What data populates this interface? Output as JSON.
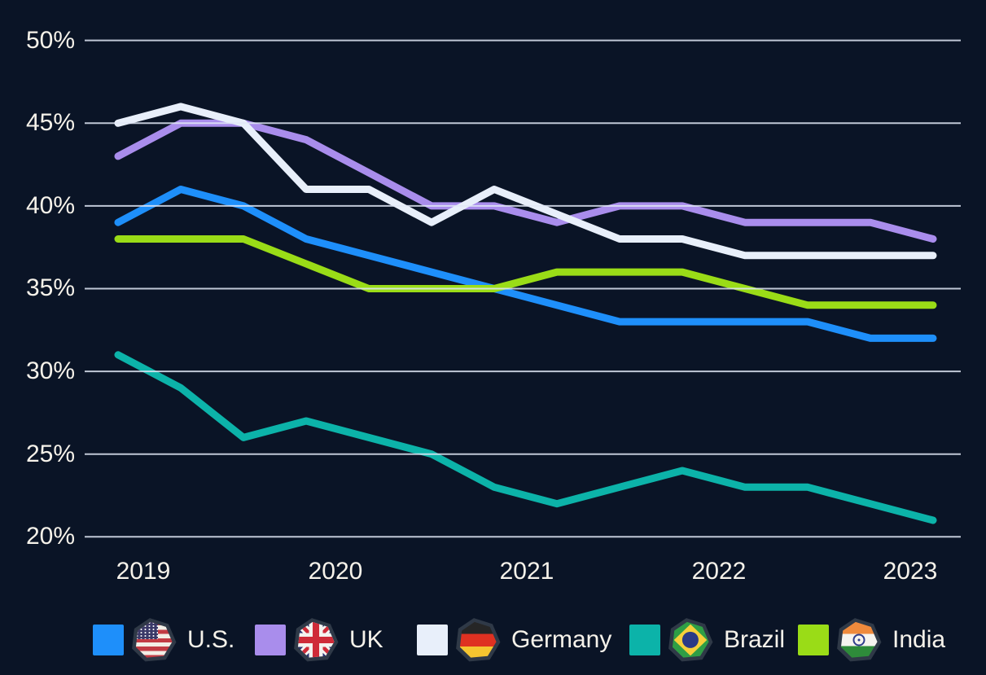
{
  "colors": {
    "background": "#0A1426",
    "gridline": "#E1E7F6",
    "text": "#F6F2EA"
  },
  "chart_data": {
    "type": "line",
    "title": "",
    "grid": true,
    "legend_position": "bottom",
    "x_axis": {
      "tick_labels": [
        "2019",
        "2020",
        "2021",
        "2022",
        "2023"
      ]
    },
    "y_axis": {
      "min": 20,
      "max": 50,
      "unit": "%"
    },
    "yticks": [
      {
        "label": "50%",
        "value": 50
      },
      {
        "label": "45%",
        "value": 45
      },
      {
        "label": "40%",
        "value": 40
      },
      {
        "label": "35%",
        "value": 35
      },
      {
        "label": "30%",
        "value": 30
      },
      {
        "label": "25%",
        "value": 25
      },
      {
        "label": "20%",
        "value": 20
      }
    ],
    "series": [
      {
        "id": "us",
        "name": "U.S.",
        "color": "#1E8FFA",
        "values": [
          39,
          41,
          40,
          38,
          37,
          36,
          35,
          34,
          33,
          33,
          33,
          33,
          32,
          32
        ]
      },
      {
        "id": "uk",
        "name": "UK",
        "color": "#A98DEC",
        "values": [
          43,
          45,
          45,
          44,
          42,
          40,
          40,
          39,
          40,
          40,
          39,
          39,
          39,
          38
        ]
      },
      {
        "id": "germany",
        "name": "Germany",
        "color": "#E8EFFA",
        "values": [
          45,
          46,
          45,
          41,
          41,
          39,
          41,
          39.5,
          38,
          38,
          37,
          37,
          37,
          37
        ]
      },
      {
        "id": "brazil",
        "name": "Brazil",
        "color": "#0CB3A9",
        "values": [
          31,
          29,
          26,
          27,
          26,
          25,
          23,
          22,
          23,
          24,
          23,
          23,
          22,
          21
        ]
      },
      {
        "id": "india",
        "name": "India",
        "color": "#9ADC17",
        "values": [
          38,
          38,
          38,
          36.5,
          35,
          35,
          35,
          36,
          36,
          36,
          35,
          34,
          34,
          34
        ]
      }
    ]
  }
}
